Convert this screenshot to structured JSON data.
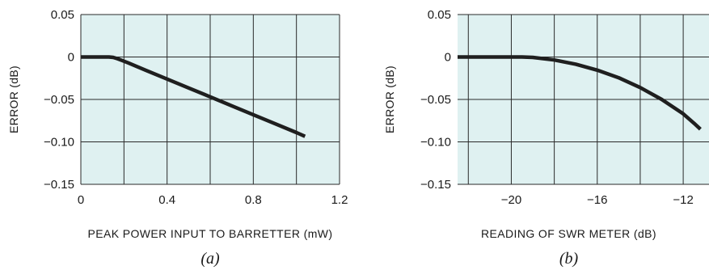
{
  "chart_data": [
    {
      "type": "line",
      "panel_id": "a",
      "title": "",
      "caption": "(a)",
      "xlabel": "PEAK POWER INPUT TO BARRETTER (mW)",
      "ylabel": "ERROR (dB)",
      "xlim": [
        0,
        1.2
      ],
      "ylim": [
        -0.15,
        0.05
      ],
      "xticks": [
        0,
        0.4,
        0.8,
        1.2
      ],
      "xtick_labels": [
        "0",
        "0.4",
        "0.8",
        "1.2"
      ],
      "yticks": [
        0.05,
        0,
        -0.05,
        -0.1,
        -0.15
      ],
      "ytick_labels": [
        "0.05",
        "0",
        "−0.05",
        "−0.10",
        "−0.15"
      ],
      "x_grid": [
        0,
        0.2,
        0.4,
        0.6,
        0.8,
        1.0,
        1.2
      ],
      "y_grid": [
        0.05,
        0,
        -0.05,
        -0.1,
        -0.15
      ],
      "grid": true,
      "series": [
        {
          "x": [
            0,
            0.05,
            0.1,
            0.13,
            0.15,
            0.17,
            0.19,
            0.22,
            0.3,
            0.4,
            0.5,
            0.6,
            0.7,
            0.8,
            0.9,
            1.0,
            1.04
          ],
          "y": [
            0,
            0,
            0,
            0,
            -0.0005,
            -0.002,
            -0.004,
            -0.007,
            -0.0155,
            -0.026,
            -0.0365,
            -0.047,
            -0.0575,
            -0.068,
            -0.0785,
            -0.089,
            -0.0935
          ]
        }
      ]
    },
    {
      "type": "line",
      "panel_id": "b",
      "title": "",
      "caption": "(b)",
      "xlabel": "READING OF SWR METER (dB)",
      "ylabel": "ERROR (dB)",
      "xlim": [
        -22.5,
        -10.8
      ],
      "ylim": [
        -0.15,
        0.05
      ],
      "xticks": [
        -20,
        -16,
        -12
      ],
      "xtick_labels": [
        "−20",
        "−16",
        "−12"
      ],
      "yticks": [
        0.05,
        0,
        -0.05,
        -0.1,
        -0.15
      ],
      "ytick_labels": [
        "0.05",
        "0",
        "−0.05",
        "−0.10",
        "−0.15"
      ],
      "x_grid": [
        -22,
        -20,
        -18,
        -16,
        -14,
        -12
      ],
      "y_grid": [
        0.05,
        0,
        -0.05,
        -0.1,
        -0.15
      ],
      "grid": true,
      "series": [
        {
          "x": [
            -22.5,
            -21,
            -20,
            -19.5,
            -19,
            -18,
            -17,
            -16,
            -15,
            -14,
            -13,
            -12,
            -11.5,
            -11.2
          ],
          "y": [
            0,
            0,
            0,
            0,
            -0.0005,
            -0.0035,
            -0.0085,
            -0.0155,
            -0.0245,
            -0.036,
            -0.05,
            -0.067,
            -0.078,
            -0.085
          ]
        }
      ]
    }
  ],
  "colors": {
    "plot_background": "#dff1f1",
    "grid": "#2a2a2a",
    "curve": "#1f1f1f"
  }
}
